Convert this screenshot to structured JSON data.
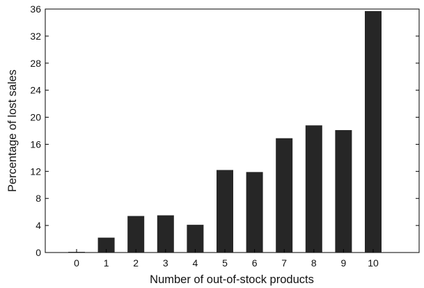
{
  "chart_data": {
    "type": "bar",
    "title": "",
    "xlabel": "Number of out-of-stock products",
    "ylabel": "Percentage of lost sales",
    "categories": [
      "0",
      "1",
      "2",
      "3",
      "4",
      "5",
      "6",
      "7",
      "8",
      "9",
      "10"
    ],
    "values": [
      0.1,
      2.2,
      5.4,
      5.5,
      4.1,
      12.2,
      11.9,
      16.9,
      18.8,
      18.1,
      35.7
    ],
    "ylim": [
      0,
      36
    ],
    "yticks": [
      "0",
      "4",
      "8",
      "12",
      "16",
      "20",
      "24",
      "28",
      "32",
      "36"
    ],
    "grid": false,
    "legend": "none",
    "bar_color": "#262626"
  }
}
